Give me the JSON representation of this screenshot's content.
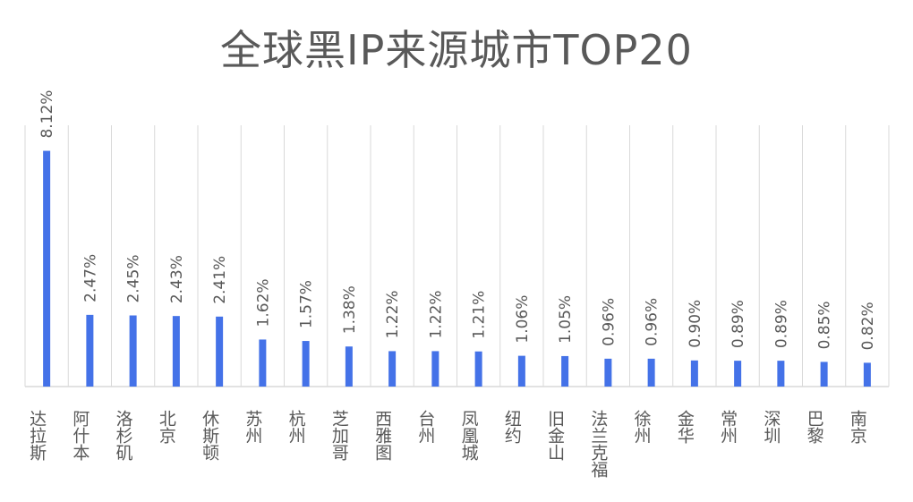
{
  "chart_data": {
    "type": "bar",
    "title": "全球黑IP来源城市TOP20",
    "categories": [
      "达拉斯",
      "阿什本",
      "洛杉矶",
      "北京",
      "休斯顿",
      "苏州",
      "杭州",
      "芝加哥",
      "西雅图",
      "台州",
      "凤凰城",
      "纽约",
      "旧金山",
      "法兰克福",
      "徐州",
      "金华",
      "常州",
      "深圳",
      "巴黎",
      "南京"
    ],
    "values": [
      8.12,
      2.47,
      2.45,
      2.43,
      2.41,
      1.62,
      1.57,
      1.38,
      1.22,
      1.22,
      1.21,
      1.06,
      1.05,
      0.96,
      0.96,
      0.9,
      0.89,
      0.89,
      0.85,
      0.82
    ],
    "data_labels": [
      "8.12%",
      "2.47%",
      "2.45%",
      "2.43%",
      "2.41%",
      "1.62%",
      "1.57%",
      "1.38%",
      "1.22%",
      "1.22%",
      "1.21%",
      "1.06%",
      "1.05%",
      "0.96%",
      "0.96%",
      "0.90%",
      "0.89%",
      "0.89%",
      "0.85%",
      "0.82%"
    ],
    "ylim": [
      0,
      9
    ],
    "grid": "vertical category separators",
    "legend": "none",
    "colors": {
      "bar": "#4472E8",
      "grid": "#D9D9D9",
      "text": "#595959"
    }
  }
}
